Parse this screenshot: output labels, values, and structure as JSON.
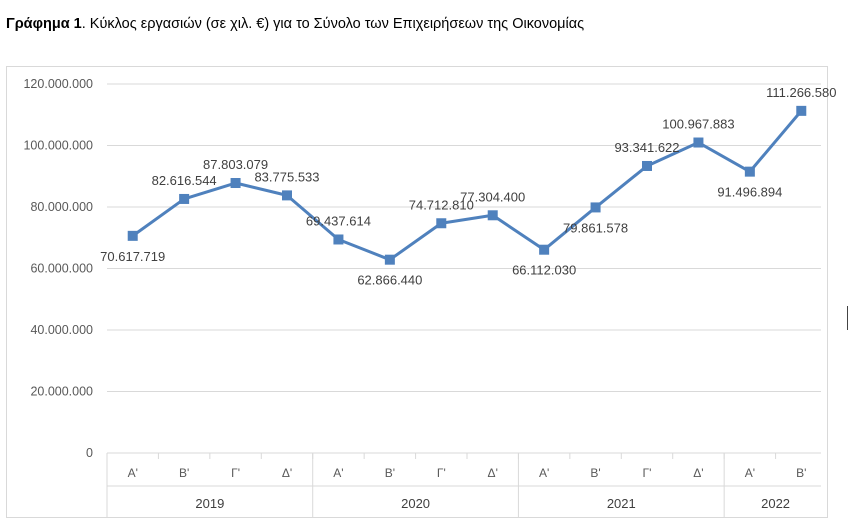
{
  "caption": {
    "bold_part": "Γράφημα 1",
    "rest": ". Κύκλος εργασιών (σε χιλ. €) για το Σύνολο των Επιχειρήσεων της Οικονομίας"
  },
  "chart_data": {
    "type": "line",
    "title": "",
    "xlabel": "",
    "ylabel": "",
    "ylim": [
      0,
      120000000
    ],
    "y_ticks": [
      0,
      20000000,
      40000000,
      60000000,
      80000000,
      100000000,
      120000000
    ],
    "y_tick_labels": [
      "0",
      "20.000.000",
      "40.000.000",
      "60.000.000",
      "80.000.000",
      "100.000.000",
      "120.000.000"
    ],
    "grid": true,
    "legend": "none",
    "line_color": "#4f81bd",
    "categories": [
      "Α'",
      "Β'",
      "Γ'",
      "Δ'",
      "Α'",
      "Β'",
      "Γ'",
      "Δ'",
      "Α'",
      "Β'",
      "Γ'",
      "Δ'",
      "Α'",
      "Β'"
    ],
    "groups": [
      {
        "label": "2019",
        "count": 4
      },
      {
        "label": "2020",
        "count": 4
      },
      {
        "label": "2021",
        "count": 4
      },
      {
        "label": "2022",
        "count": 2
      }
    ],
    "series": [
      {
        "values": [
          70617719,
          82616544,
          87803079,
          83775533,
          69437614,
          62866440,
          74712810,
          77304400,
          66112030,
          79861578,
          93341622,
          100967883,
          91496894,
          111266580
        ],
        "labels": [
          "70.617.719",
          "82.616.544",
          "87.803.079",
          "83.775.533",
          "69.437.614",
          "62.866.440",
          "74.712.810",
          "77.304.400",
          "66.112.030",
          "79.861.578",
          "93.341.622",
          "100.967.883",
          "91.496.894",
          "111.266.580"
        ],
        "label_pos": [
          "below",
          "above",
          "above",
          "above",
          "above",
          "below",
          "above",
          "above",
          "below",
          "below",
          "above",
          "above",
          "below",
          "above"
        ]
      }
    ]
  }
}
